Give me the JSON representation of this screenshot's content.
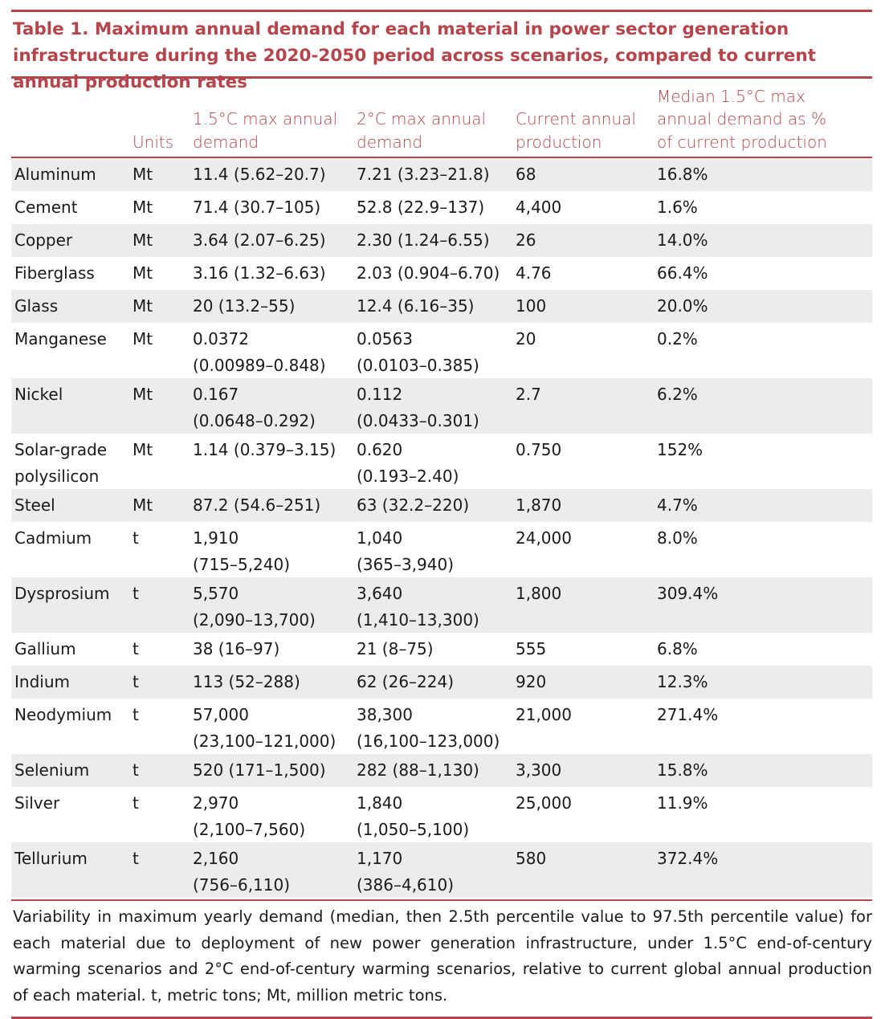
{
  "title": "Table 1.  Maximum annual demand for each material in power sector generation infrastructure during the 2020-2050 period across scenarios, compared to current annual production rates",
  "columns": [
    {
      "l1": "",
      "l2": "",
      "l3": ""
    },
    {
      "l1": "",
      "l2": "",
      "l3": "Units"
    },
    {
      "l1": "",
      "l2": "1.5°C max annual",
      "l3": "demand"
    },
    {
      "l1": "",
      "l2": "2°C max annual",
      "l3": "demand"
    },
    {
      "l1": "",
      "l2": "Current annual",
      "l3": "production"
    },
    {
      "l1": "Median 1.5°C max",
      "l2": "annual demand as %",
      "l3": "of current production"
    }
  ],
  "rows": [
    {
      "material": [
        "Aluminum"
      ],
      "units": "Mt",
      "d15": [
        "11.4 (5.62–20.7)"
      ],
      "d2": [
        "7.21 (3.23–21.8)"
      ],
      "prod": "68",
      "pct": "16.8%"
    },
    {
      "material": [
        "Cement"
      ],
      "units": "Mt",
      "d15": [
        "71.4 (30.7–105)"
      ],
      "d2": [
        "52.8 (22.9–137)"
      ],
      "prod": "4,400",
      "pct": "1.6%"
    },
    {
      "material": [
        "Copper"
      ],
      "units": "Mt",
      "d15": [
        "3.64 (2.07–6.25)"
      ],
      "d2": [
        "2.30 (1.24–6.55)"
      ],
      "prod": "26",
      "pct": "14.0%"
    },
    {
      "material": [
        "Fiberglass"
      ],
      "units": "Mt",
      "d15": [
        "3.16 (1.32–6.63)"
      ],
      "d2": [
        "2.03 (0.904–6.70)"
      ],
      "prod": "4.76",
      "pct": "66.4%"
    },
    {
      "material": [
        "Glass"
      ],
      "units": "Mt",
      "d15": [
        "20 (13.2–55)"
      ],
      "d2": [
        "12.4 (6.16–35)"
      ],
      "prod": "100",
      "pct": "20.0%"
    },
    {
      "material": [
        "Manganese"
      ],
      "units": "Mt",
      "d15": [
        "0.0372",
        "(0.00989–0.848)"
      ],
      "d2": [
        "0.0563",
        "(0.0103–0.385)"
      ],
      "prod": "20",
      "pct": "0.2%"
    },
    {
      "material": [
        "Nickel"
      ],
      "units": "Mt",
      "d15": [
        "0.167",
        "(0.0648–0.292)"
      ],
      "d2": [
        "0.112",
        "(0.0433–0.301)"
      ],
      "prod": "2.7",
      "pct": "6.2%"
    },
    {
      "material": [
        "Solar-grade",
        "polysilicon"
      ],
      "units": "Mt",
      "d15": [
        "1.14 (0.379–3.15)"
      ],
      "d2": [
        "0.620",
        "(0.193–2.40)"
      ],
      "prod": "0.750",
      "pct": "152%"
    },
    {
      "material": [
        "Steel"
      ],
      "units": "Mt",
      "d15": [
        "87.2 (54.6–251)"
      ],
      "d2": [
        "63 (32.2–220)"
      ],
      "prod": "1,870",
      "pct": "4.7%"
    },
    {
      "material": [
        "Cadmium"
      ],
      "units": "t",
      "d15": [
        "1,910",
        "(715–5,240)"
      ],
      "d2": [
        "1,040",
        "(365–3,940)"
      ],
      "prod": "24,000",
      "pct": "8.0%"
    },
    {
      "material": [
        "Dysprosium"
      ],
      "units": "t",
      "d15": [
        "5,570",
        "(2,090–13,700)"
      ],
      "d2": [
        "3,640",
        "(1,410–13,300)"
      ],
      "prod": "1,800",
      "pct": "309.4%"
    },
    {
      "material": [
        "Gallium"
      ],
      "units": "t",
      "d15": [
        "38 (16–97)"
      ],
      "d2": [
        "21 (8–75)"
      ],
      "prod": "555",
      "pct": "6.8%"
    },
    {
      "material": [
        "Indium"
      ],
      "units": "t",
      "d15": [
        "113 (52–288)"
      ],
      "d2": [
        "62 (26–224)"
      ],
      "prod": "920",
      "pct": "12.3%"
    },
    {
      "material": [
        "Neodymium"
      ],
      "units": "t",
      "d15": [
        "57,000",
        "(23,100–121,000)"
      ],
      "d2": [
        "38,300",
        "(16,100–123,000)"
      ],
      "prod": "21,000",
      "pct": "271.4%"
    },
    {
      "material": [
        "Selenium"
      ],
      "units": "t",
      "d15": [
        "520 (171–1,500)"
      ],
      "d2": [
        "282 (88–1,130)"
      ],
      "prod": "3,300",
      "pct": "15.8%"
    },
    {
      "material": [
        "Silver"
      ],
      "units": "t",
      "d15": [
        "2,970",
        "(2,100–7,560)"
      ],
      "d2": [
        "1,840",
        "(1,050–5,100)"
      ],
      "prod": "25,000",
      "pct": "11.9%"
    },
    {
      "material": [
        "Tellurium"
      ],
      "units": "t",
      "d15": [
        "2,160",
        "(756–6,110)"
      ],
      "d2": [
        "1,170",
        "(386–4,610)"
      ],
      "prod": "580",
      "pct": "372.4%"
    }
  ],
  "footnote": "Variability in maximum yearly demand (median, then 2.5th percentile value to 97.5th percentile value) for each material due to deployment of new power generation infrastructure, under 1.5°C end-of-century warming scenarios and 2°C end-of-century warming scenarios, relative to current global annual production of each material. t, metric tons; Mt, million metric tons.",
  "colors": {
    "accent": "#b5444b",
    "shade": "#ececec",
    "text": "#1a1a1a"
  }
}
